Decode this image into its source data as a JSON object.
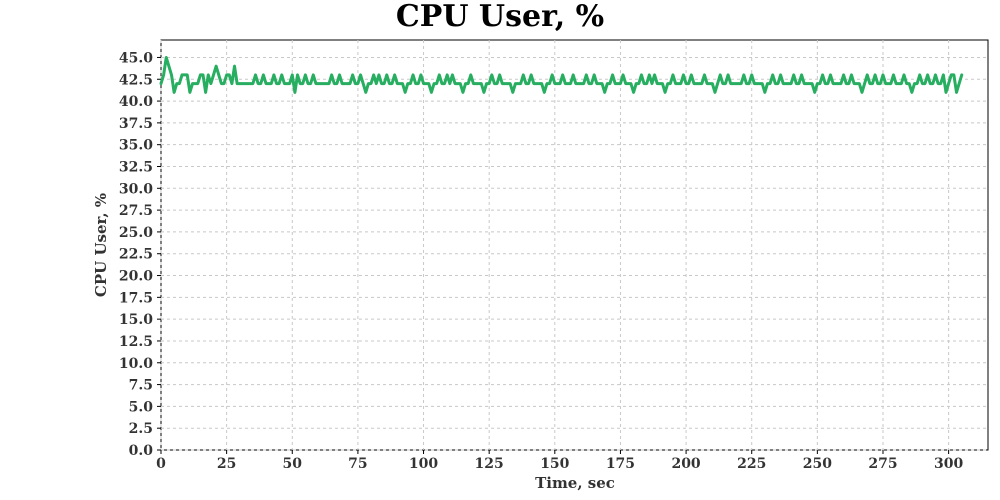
{
  "chart_data": {
    "type": "line",
    "title": "CPU User, %",
    "xlabel": "Time, sec",
    "ylabel": "CPU User, %",
    "xlim": [
      0,
      315
    ],
    "ylim": [
      0,
      47
    ],
    "x_ticks": [
      "0",
      "25",
      "50",
      "75",
      "100",
      "125",
      "150",
      "175",
      "200",
      "225",
      "250",
      "275",
      "300"
    ],
    "y_ticks": [
      "0.0",
      "2.5",
      "5.0",
      "7.5",
      "10.0",
      "12.5",
      "15.0",
      "17.5",
      "20.0",
      "22.5",
      "25.0",
      "27.5",
      "30.0",
      "32.5",
      "35.0",
      "37.5",
      "40.0",
      "42.5",
      "45.0"
    ],
    "grid": true,
    "color": "#27ae60",
    "series": [
      {
        "x_start": 0,
        "x_step": 1,
        "values": [
          42,
          43,
          45,
          44,
          43,
          41,
          42,
          42,
          43,
          43,
          43,
          41,
          42,
          42,
          42,
          43,
          43,
          41,
          43,
          42,
          43,
          44,
          43,
          42,
          42,
          43,
          43,
          42,
          44,
          42,
          42,
          42,
          42,
          42,
          42,
          42,
          43,
          42,
          42,
          43,
          42,
          42,
          42,
          43,
          42,
          42,
          43,
          42,
          42,
          42,
          43,
          41,
          43,
          42,
          42,
          43,
          42,
          42,
          43,
          42,
          42,
          42,
          42,
          42,
          42,
          43,
          42,
          42,
          43,
          42,
          42,
          42,
          42,
          43,
          42,
          42,
          43,
          42,
          41,
          42,
          42,
          43,
          42,
          43,
          42,
          42,
          43,
          42,
          42,
          43,
          42,
          42,
          42,
          41,
          42,
          42,
          43,
          42,
          42,
          43,
          42,
          42,
          42,
          41,
          42,
          42,
          43,
          42,
          42,
          43,
          42,
          43,
          42,
          42,
          42,
          41,
          42,
          42,
          43,
          42,
          42,
          42,
          42,
          41,
          42,
          42,
          43,
          42,
          42,
          43,
          42,
          42,
          42,
          42,
          41,
          42,
          42,
          42,
          43,
          42,
          42,
          43,
          42,
          42,
          42,
          42,
          41,
          42,
          42,
          43,
          42,
          42,
          42,
          43,
          42,
          42,
          42,
          43,
          42,
          42,
          42,
          42,
          43,
          42,
          42,
          43,
          42,
          42,
          42,
          41,
          42,
          42,
          43,
          42,
          42,
          42,
          43,
          42,
          42,
          42,
          41,
          42,
          42,
          43,
          42,
          42,
          43,
          42,
          43,
          42,
          42,
          42,
          41,
          42,
          42,
          43,
          42,
          42,
          42,
          43,
          42,
          42,
          43,
          42,
          42,
          42,
          42,
          43,
          42,
          42,
          42,
          41,
          42,
          43,
          42,
          42,
          43,
          42,
          42,
          42,
          42,
          42,
          43,
          42,
          42,
          43,
          42,
          42,
          42,
          42,
          41,
          42,
          42,
          43,
          42,
          42,
          43,
          42,
          42,
          42,
          42,
          43,
          42,
          42,
          43,
          42,
          42,
          42,
          42,
          41,
          42,
          42,
          43,
          42,
          42,
          43,
          42,
          42,
          42,
          42,
          43,
          42,
          42,
          43,
          42,
          42,
          42,
          41,
          42,
          43,
          42,
          42,
          43,
          42,
          42,
          43,
          42,
          42,
          42,
          43,
          42,
          42,
          42,
          43,
          42,
          42,
          41,
          42,
          42,
          43,
          42,
          42,
          43,
          42,
          42,
          43,
          42,
          42,
          43,
          41,
          42,
          43,
          43,
          41,
          42,
          43
        ]
      }
    ]
  }
}
